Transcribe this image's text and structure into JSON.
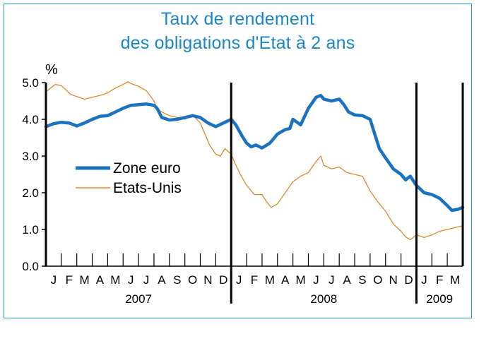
{
  "chart_data": {
    "type": "line",
    "title_line1": "Taux de rendement",
    "title_line2": "des obligations d'Etat à 2 ans",
    "ylabel": "%",
    "ylim": [
      0,
      5
    ],
    "yticks": [
      "0.0",
      "1.0",
      "2.0",
      "3.0",
      "4.0",
      "5.0"
    ],
    "xlim": [
      0,
      27
    ],
    "month_labels": [
      "J",
      "F",
      "M",
      "A",
      "M",
      "J",
      "J",
      "A",
      "S",
      "O",
      "N",
      "D",
      "J",
      "F",
      "M",
      "A",
      "M",
      "J",
      "J",
      "A",
      "S",
      "O",
      "N",
      "D",
      "J",
      "F",
      "M"
    ],
    "years": [
      {
        "label": "2007",
        "start": 0,
        "end": 12
      },
      {
        "label": "2008",
        "start": 12,
        "end": 24
      },
      {
        "label": "2009",
        "start": 24,
        "end": 27
      }
    ],
    "legend": {
      "position": "center-left"
    },
    "series": [
      {
        "name": "Zone euro",
        "color": "#1b72be",
        "points": [
          [
            0,
            3.8
          ],
          [
            0.5,
            3.88
          ],
          [
            1,
            3.92
          ],
          [
            1.5,
            3.9
          ],
          [
            2,
            3.82
          ],
          [
            2.5,
            3.9
          ],
          [
            3,
            4.0
          ],
          [
            3.5,
            4.08
          ],
          [
            4,
            4.1
          ],
          [
            4.5,
            4.2
          ],
          [
            5,
            4.3
          ],
          [
            5.5,
            4.38
          ],
          [
            6,
            4.4
          ],
          [
            6.5,
            4.42
          ],
          [
            7,
            4.38
          ],
          [
            7.2,
            4.3
          ],
          [
            7.5,
            4.05
          ],
          [
            8,
            3.98
          ],
          [
            8.5,
            4.0
          ],
          [
            9,
            4.05
          ],
          [
            9.5,
            4.1
          ],
          [
            10,
            4.05
          ],
          [
            10.5,
            3.9
          ],
          [
            11,
            3.8
          ],
          [
            11.5,
            3.9
          ],
          [
            12,
            4.0
          ],
          [
            12.3,
            3.85
          ],
          [
            12.7,
            3.55
          ],
          [
            13,
            3.35
          ],
          [
            13.3,
            3.25
          ],
          [
            13.6,
            3.3
          ],
          [
            14,
            3.22
          ],
          [
            14.5,
            3.35
          ],
          [
            15,
            3.6
          ],
          [
            15.5,
            3.72
          ],
          [
            15.8,
            3.75
          ],
          [
            16,
            4.0
          ],
          [
            16.5,
            3.85
          ],
          [
            17,
            4.3
          ],
          [
            17.5,
            4.6
          ],
          [
            17.8,
            4.65
          ],
          [
            18,
            4.55
          ],
          [
            18.5,
            4.5
          ],
          [
            19,
            4.55
          ],
          [
            19.3,
            4.4
          ],
          [
            19.6,
            4.2
          ],
          [
            20,
            4.12
          ],
          [
            20.5,
            4.1
          ],
          [
            21,
            4.0
          ],
          [
            21.3,
            3.6
          ],
          [
            21.6,
            3.2
          ],
          [
            22,
            2.95
          ],
          [
            22.5,
            2.65
          ],
          [
            23,
            2.5
          ],
          [
            23.3,
            2.35
          ],
          [
            23.6,
            2.45
          ],
          [
            24,
            2.2
          ],
          [
            24.5,
            2.0
          ],
          [
            25,
            1.95
          ],
          [
            25.5,
            1.85
          ],
          [
            26,
            1.65
          ],
          [
            26.3,
            1.52
          ],
          [
            26.7,
            1.55
          ],
          [
            27,
            1.6
          ]
        ]
      },
      {
        "name": "Etats-Unis",
        "color": "#e08a2c",
        "points": [
          [
            0,
            4.75
          ],
          [
            0.3,
            4.85
          ],
          [
            0.6,
            4.95
          ],
          [
            1,
            4.92
          ],
          [
            1.3,
            4.8
          ],
          [
            1.6,
            4.68
          ],
          [
            2,
            4.62
          ],
          [
            2.5,
            4.55
          ],
          [
            3,
            4.6
          ],
          [
            3.5,
            4.65
          ],
          [
            4,
            4.72
          ],
          [
            4.5,
            4.85
          ],
          [
            5,
            4.95
          ],
          [
            5.3,
            5.02
          ],
          [
            5.6,
            4.96
          ],
          [
            6,
            4.9
          ],
          [
            6.5,
            4.78
          ],
          [
            7,
            4.5
          ],
          [
            7.2,
            4.3
          ],
          [
            7.5,
            4.2
          ],
          [
            8,
            4.1
          ],
          [
            8.5,
            4.05
          ],
          [
            9,
            4.0
          ],
          [
            9.5,
            4.12
          ],
          [
            10,
            3.9
          ],
          [
            10.3,
            3.6
          ],
          [
            10.6,
            3.3
          ],
          [
            11,
            3.05
          ],
          [
            11.3,
            3.0
          ],
          [
            11.6,
            3.2
          ],
          [
            12,
            3.05
          ],
          [
            12.3,
            2.75
          ],
          [
            12.6,
            2.5
          ],
          [
            13,
            2.2
          ],
          [
            13.5,
            1.95
          ],
          [
            14,
            1.95
          ],
          [
            14.3,
            1.75
          ],
          [
            14.6,
            1.6
          ],
          [
            15,
            1.7
          ],
          [
            15.5,
            2.0
          ],
          [
            16,
            2.3
          ],
          [
            16.5,
            2.45
          ],
          [
            17,
            2.55
          ],
          [
            17.5,
            2.85
          ],
          [
            17.8,
            3.0
          ],
          [
            18,
            2.75
          ],
          [
            18.5,
            2.65
          ],
          [
            19,
            2.7
          ],
          [
            19.5,
            2.55
          ],
          [
            20,
            2.5
          ],
          [
            20.5,
            2.45
          ],
          [
            21,
            2.05
          ],
          [
            21.5,
            1.75
          ],
          [
            22,
            1.5
          ],
          [
            22.5,
            1.15
          ],
          [
            23,
            0.95
          ],
          [
            23.3,
            0.8
          ],
          [
            23.6,
            0.72
          ],
          [
            24,
            0.85
          ],
          [
            24.5,
            0.78
          ],
          [
            25,
            0.85
          ],
          [
            25.5,
            0.95
          ],
          [
            26,
            1.0
          ],
          [
            26.5,
            1.05
          ],
          [
            27,
            1.1
          ]
        ]
      }
    ]
  }
}
